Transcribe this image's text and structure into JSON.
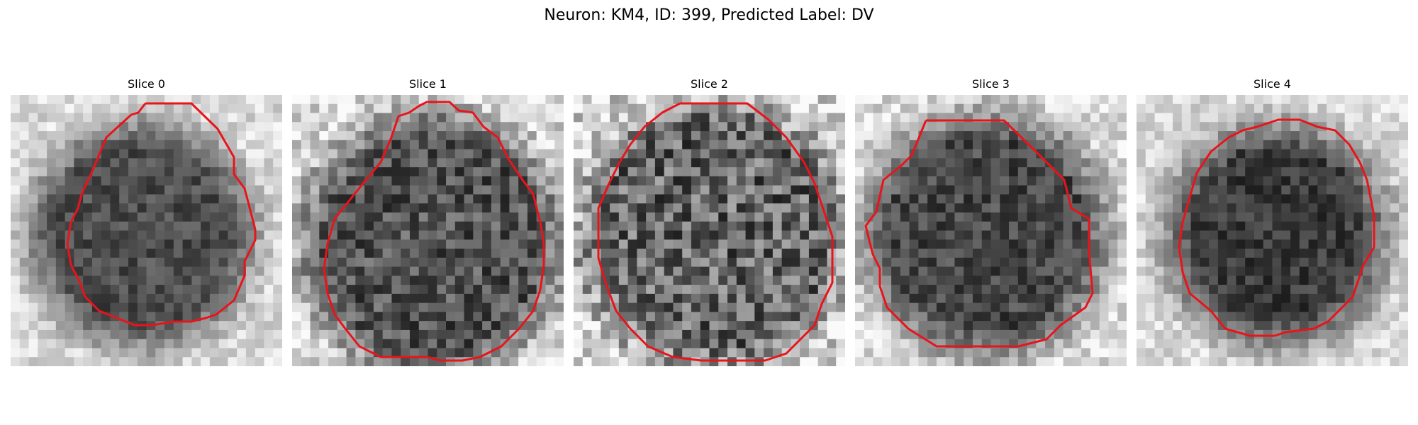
{
  "figure": {
    "title": "Neuron: KM4, ID: 399, Predicted Label: DV"
  },
  "panels": [
    {
      "label": "Slice 0"
    },
    {
      "label": "Slice 1"
    },
    {
      "label": "Slice 2"
    },
    {
      "label": "Slice 3"
    },
    {
      "label": "Slice 4"
    }
  ],
  "colors": {
    "contour": "#e8141b",
    "background": "#ffffff"
  }
}
